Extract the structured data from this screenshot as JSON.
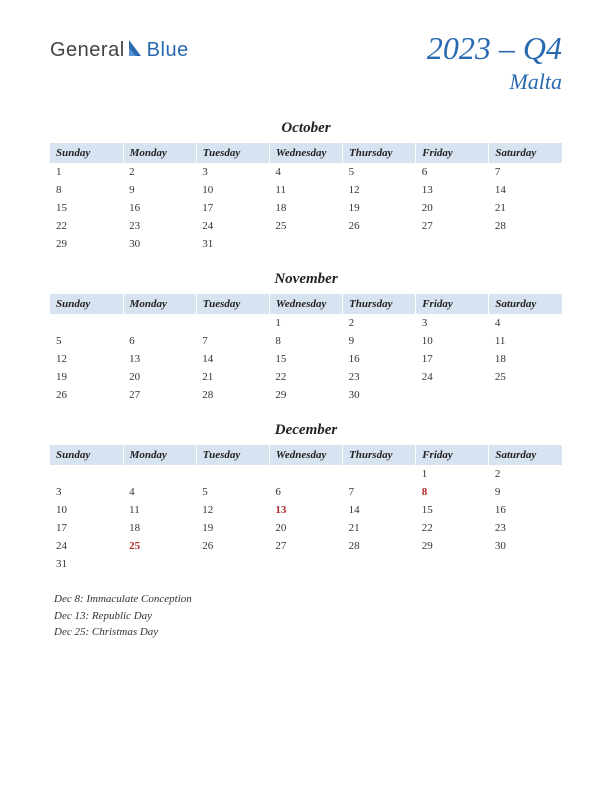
{
  "logo": {
    "text1": "General",
    "text2": "Blue"
  },
  "header": {
    "quarter": "2023 – Q4",
    "country": "Malta"
  },
  "colors": {
    "brand_blue": "#2969b0",
    "header_bg": "#d8e3f2",
    "holiday_red": "#b02929",
    "text": "#333333"
  },
  "day_headers": [
    "Sunday",
    "Monday",
    "Tuesday",
    "Wednesday",
    "Thursday",
    "Friday",
    "Saturday"
  ],
  "months": [
    {
      "name": "October",
      "weeks": [
        [
          {
            "d": "1"
          },
          {
            "d": "2"
          },
          {
            "d": "3"
          },
          {
            "d": "4"
          },
          {
            "d": "5"
          },
          {
            "d": "6"
          },
          {
            "d": "7"
          }
        ],
        [
          {
            "d": "8"
          },
          {
            "d": "9"
          },
          {
            "d": "10"
          },
          {
            "d": "11"
          },
          {
            "d": "12"
          },
          {
            "d": "13"
          },
          {
            "d": "14"
          }
        ],
        [
          {
            "d": "15"
          },
          {
            "d": "16"
          },
          {
            "d": "17"
          },
          {
            "d": "18"
          },
          {
            "d": "19"
          },
          {
            "d": "20"
          },
          {
            "d": "21"
          }
        ],
        [
          {
            "d": "22"
          },
          {
            "d": "23"
          },
          {
            "d": "24"
          },
          {
            "d": "25"
          },
          {
            "d": "26"
          },
          {
            "d": "27"
          },
          {
            "d": "28"
          }
        ],
        [
          {
            "d": "29"
          },
          {
            "d": "30"
          },
          {
            "d": "31"
          },
          {
            "d": ""
          },
          {
            "d": ""
          },
          {
            "d": ""
          },
          {
            "d": ""
          }
        ]
      ]
    },
    {
      "name": "November",
      "weeks": [
        [
          {
            "d": ""
          },
          {
            "d": ""
          },
          {
            "d": ""
          },
          {
            "d": "1"
          },
          {
            "d": "2"
          },
          {
            "d": "3"
          },
          {
            "d": "4"
          }
        ],
        [
          {
            "d": "5"
          },
          {
            "d": "6"
          },
          {
            "d": "7"
          },
          {
            "d": "8"
          },
          {
            "d": "9"
          },
          {
            "d": "10"
          },
          {
            "d": "11"
          }
        ],
        [
          {
            "d": "12"
          },
          {
            "d": "13"
          },
          {
            "d": "14"
          },
          {
            "d": "15"
          },
          {
            "d": "16"
          },
          {
            "d": "17"
          },
          {
            "d": "18"
          }
        ],
        [
          {
            "d": "19"
          },
          {
            "d": "20"
          },
          {
            "d": "21"
          },
          {
            "d": "22"
          },
          {
            "d": "23"
          },
          {
            "d": "24"
          },
          {
            "d": "25"
          }
        ],
        [
          {
            "d": "26"
          },
          {
            "d": "27"
          },
          {
            "d": "28"
          },
          {
            "d": "29"
          },
          {
            "d": "30"
          },
          {
            "d": ""
          },
          {
            "d": ""
          }
        ]
      ]
    },
    {
      "name": "December",
      "weeks": [
        [
          {
            "d": ""
          },
          {
            "d": ""
          },
          {
            "d": ""
          },
          {
            "d": ""
          },
          {
            "d": ""
          },
          {
            "d": "1"
          },
          {
            "d": "2"
          }
        ],
        [
          {
            "d": "3"
          },
          {
            "d": "4"
          },
          {
            "d": "5"
          },
          {
            "d": "6"
          },
          {
            "d": "7"
          },
          {
            "d": "8",
            "h": true
          },
          {
            "d": "9"
          }
        ],
        [
          {
            "d": "10"
          },
          {
            "d": "11"
          },
          {
            "d": "12"
          },
          {
            "d": "13",
            "h": true
          },
          {
            "d": "14"
          },
          {
            "d": "15"
          },
          {
            "d": "16"
          }
        ],
        [
          {
            "d": "17"
          },
          {
            "d": "18"
          },
          {
            "d": "19"
          },
          {
            "d": "20"
          },
          {
            "d": "21"
          },
          {
            "d": "22"
          },
          {
            "d": "23"
          }
        ],
        [
          {
            "d": "24"
          },
          {
            "d": "25",
            "h": true
          },
          {
            "d": "26"
          },
          {
            "d": "27"
          },
          {
            "d": "28"
          },
          {
            "d": "29"
          },
          {
            "d": "30"
          }
        ],
        [
          {
            "d": "31"
          },
          {
            "d": ""
          },
          {
            "d": ""
          },
          {
            "d": ""
          },
          {
            "d": ""
          },
          {
            "d": ""
          },
          {
            "d": ""
          }
        ]
      ]
    }
  ],
  "holidays": [
    "Dec 8: Immaculate Conception",
    "Dec 13: Republic Day",
    "Dec 25: Christmas Day"
  ]
}
